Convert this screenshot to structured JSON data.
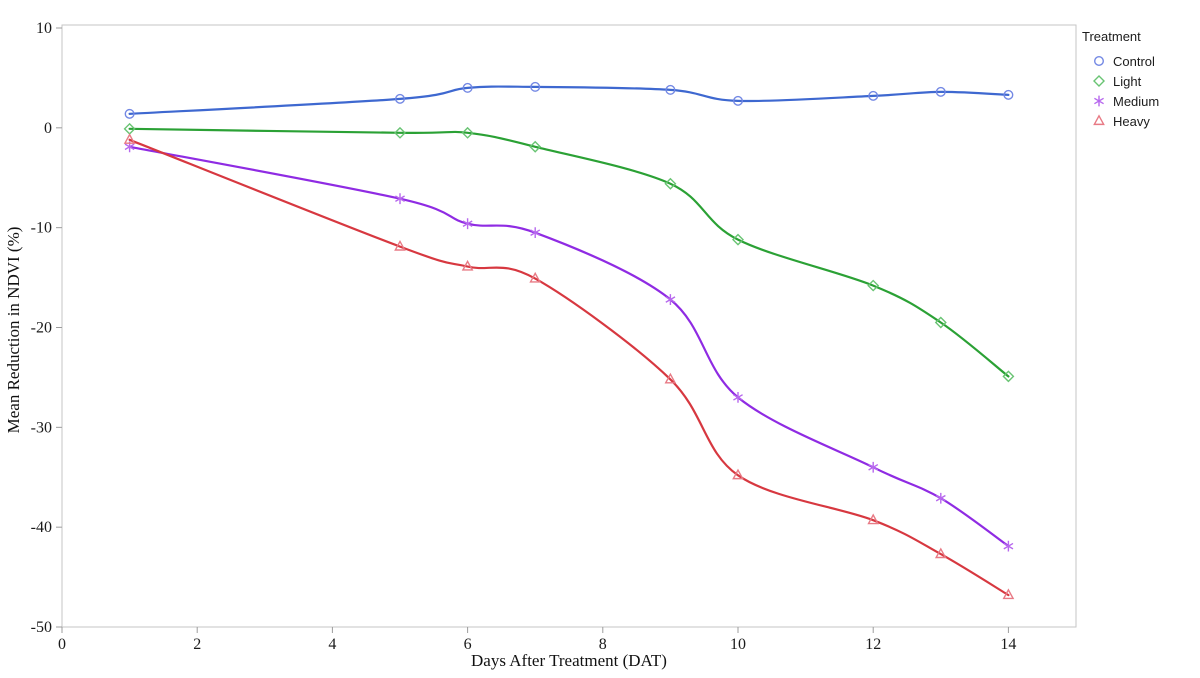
{
  "chart_data": {
    "type": "line",
    "title": "",
    "xlabel": "Days After Treatment (DAT)",
    "ylabel": "Mean Reduction in NDVI (%)",
    "legend_title": "Treatment",
    "legend_position": "right-outside-top",
    "grid": false,
    "x": [
      1,
      5,
      6,
      7,
      9,
      10,
      12,
      13,
      14
    ],
    "xlim": [
      0,
      15
    ],
    "ylim": [
      -50,
      10.3
    ],
    "xticks": [
      0,
      2,
      4,
      6,
      8,
      10,
      12,
      14
    ],
    "yticks": [
      10,
      0,
      -10,
      -20,
      -30,
      -40,
      -50
    ],
    "frame_color": "#c6c6c6",
    "tick_color": "#9c9c9c",
    "tick_label_color": "#1a1a1a",
    "series": [
      {
        "name": "Control",
        "marker": "circle",
        "line_color": "#3E68D0",
        "marker_color": "#7388E4",
        "values": [
          1.4,
          2.9,
          4.0,
          4.1,
          3.8,
          2.7,
          3.2,
          3.6,
          3.3
        ]
      },
      {
        "name": "Light",
        "marker": "diamond",
        "line_color": "#2BA135",
        "marker_color": "#69C473",
        "values": [
          -0.1,
          -0.5,
          -0.5,
          -1.9,
          -5.6,
          -11.2,
          -15.8,
          -19.5,
          -24.9
        ]
      },
      {
        "name": "Medium",
        "marker": "asterisk",
        "line_color": "#8F2BE3",
        "marker_color": "#B768EE",
        "values": [
          -1.9,
          -7.1,
          -9.6,
          -10.5,
          -17.2,
          -27.0,
          -34.0,
          -37.1,
          -41.9
        ]
      },
      {
        "name": "Heavy",
        "marker": "triangle",
        "line_color": "#D73840",
        "marker_color": "#E87A85",
        "values": [
          -1.2,
          -11.9,
          -13.9,
          -15.1,
          -25.2,
          -34.8,
          -39.3,
          -42.7,
          -46.8
        ]
      }
    ]
  }
}
